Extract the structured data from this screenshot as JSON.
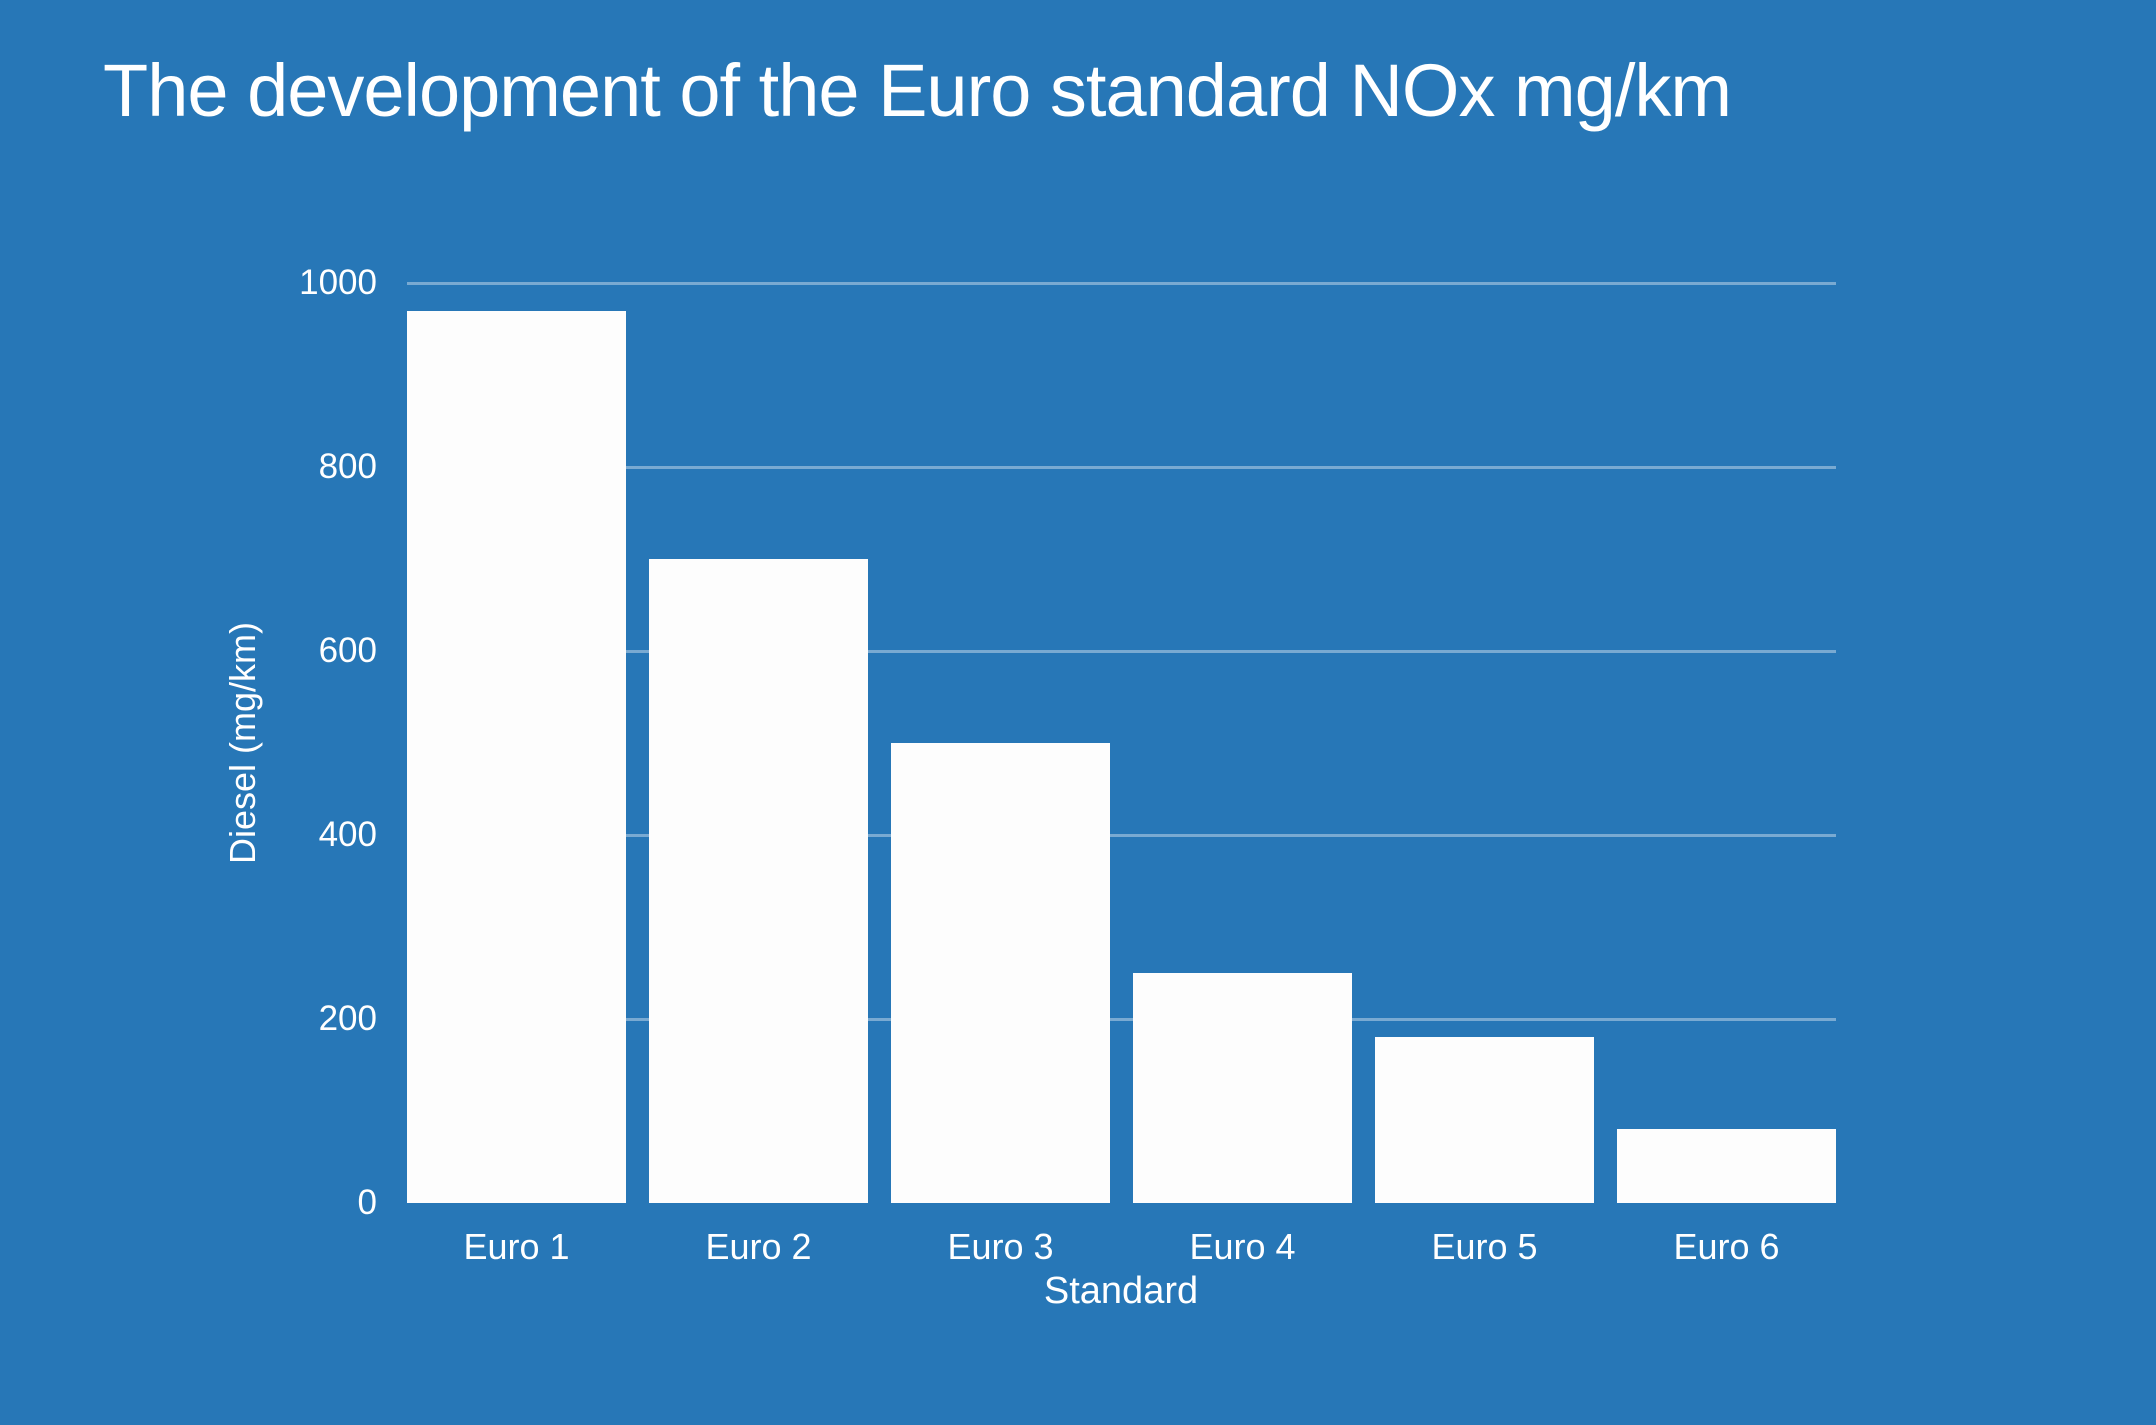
{
  "chart_data": {
    "type": "bar",
    "title": "The development of the Euro standard NOx mg/km",
    "xlabel": "Standard",
    "ylabel": "Diesel (mg/km)",
    "categories": [
      "Euro 1",
      "Euro 2",
      "Euro 3",
      "Euro 4",
      "Euro 5",
      "Euro 6"
    ],
    "values": [
      970,
      700,
      500,
      250,
      180,
      80
    ],
    "ylim": [
      0,
      1000
    ],
    "yticks": [
      0,
      200,
      400,
      600,
      800,
      1000
    ],
    "grid": true,
    "legend": "none",
    "colors": {
      "background": "#2777b7",
      "bar": "#fdfdfd",
      "text": "#ffffff",
      "gridline": "rgba(255,255,255,0.38)"
    }
  }
}
